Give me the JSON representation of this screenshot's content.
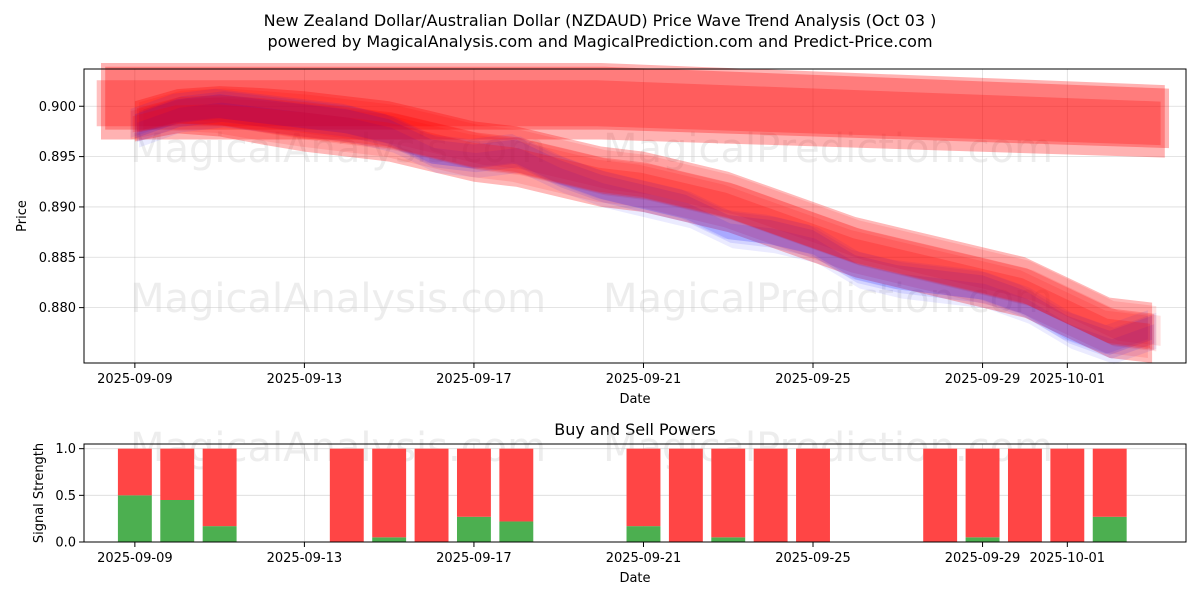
{
  "title_line1": "New Zealand Dollar/Australian Dollar (NZDAUD) Price Wave Trend Analysis (Oct 03 )",
  "title_line2": "powered by MagicalAnalysis.com and MagicalPrediction.com and Predict-Price.com",
  "watermarks": [
    "MagicalAnalysis.com",
    "MagicalPrediction.com"
  ],
  "colors": {
    "red": "#ff0000",
    "blue": "#0000ff",
    "buy": "#4caf50",
    "sell": "#ff4545"
  },
  "chart_data": [
    {
      "type": "area",
      "ylabel": "Price",
      "xlabel": "Date",
      "x_tick_labels": [
        "2025-09-09",
        "2025-09-13",
        "2025-09-17",
        "2025-09-21",
        "2025-09-25",
        "2025-09-29",
        "2025-10-01"
      ],
      "x_tick_days": [
        9,
        13,
        17,
        21,
        25,
        29,
        31
      ],
      "xlim_day": [
        7.8,
        33.8
      ],
      "ylim": [
        0.8745,
        0.9037
      ],
      "y_ticks": [
        0.88,
        0.885,
        0.89,
        0.895,
        0.9
      ],
      "y_tick_labels": [
        "0.880",
        "0.885",
        "0.890",
        "0.895",
        "0.900"
      ],
      "upper_band": {
        "x_day": [
          8.2,
          20,
          33.3
        ],
        "center": [
          0.9005,
          0.9005,
          0.8985
        ],
        "halfwidth": [
          0.0038,
          0.0038,
          0.0036
        ]
      },
      "red_wave": {
        "x_day": [
          9,
          10,
          11,
          12,
          13,
          14,
          15,
          16,
          17,
          18,
          19,
          20,
          21,
          22,
          23,
          24,
          25,
          26,
          27,
          28,
          29,
          30,
          31,
          32,
          33
        ],
        "center": [
          0.8985,
          0.8995,
          0.8995,
          0.899,
          0.8985,
          0.898,
          0.8975,
          0.8965,
          0.8955,
          0.895,
          0.894,
          0.893,
          0.8925,
          0.8915,
          0.8905,
          0.889,
          0.8875,
          0.886,
          0.885,
          0.884,
          0.883,
          0.882,
          0.88,
          0.878,
          0.8775
        ],
        "halfwidth": [
          0.002,
          0.0022,
          0.0025,
          0.0028,
          0.003,
          0.003,
          0.003,
          0.003,
          0.003,
          0.003,
          0.003,
          0.003,
          0.003,
          0.003,
          0.003,
          0.003,
          0.003,
          0.003,
          0.003,
          0.003,
          0.003,
          0.003,
          0.003,
          0.003,
          0.003
        ]
      },
      "blue_wave": {
        "x_day": [
          9,
          10,
          11,
          12,
          13,
          14,
          15,
          16,
          17,
          18,
          19,
          20,
          21,
          22,
          23,
          24,
          25,
          26,
          27,
          28,
          29,
          30,
          31,
          32,
          33
        ],
        "center": [
          0.898,
          0.8995,
          0.9,
          0.8995,
          0.899,
          0.8985,
          0.8975,
          0.8955,
          0.895,
          0.8955,
          0.8935,
          0.892,
          0.891,
          0.89,
          0.888,
          0.8875,
          0.8865,
          0.884,
          0.883,
          0.8825,
          0.882,
          0.8805,
          0.878,
          0.8765,
          0.878
        ],
        "halfwidth": [
          0.0012,
          0.0012,
          0.0012,
          0.0012,
          0.0012,
          0.0012,
          0.0012,
          0.0012,
          0.0012,
          0.0012,
          0.0012,
          0.0012,
          0.0012,
          0.0012,
          0.0012,
          0.0012,
          0.0012,
          0.0012,
          0.0012,
          0.0012,
          0.0012,
          0.0012,
          0.0012,
          0.0012,
          0.0012
        ]
      }
    },
    {
      "type": "bar",
      "title": "Buy and Sell Powers",
      "ylabel": "Signal Strength",
      "xlabel": "Date",
      "x_tick_labels": [
        "2025-09-09",
        "2025-09-13",
        "2025-09-17",
        "2025-09-21",
        "2025-09-25",
        "2025-09-29",
        "2025-10-01"
      ],
      "x_tick_days": [
        9,
        13,
        17,
        21,
        25,
        29,
        31
      ],
      "xlim_day": [
        7.8,
        33.8
      ],
      "ylim": [
        0,
        1.05
      ],
      "y_ticks": [
        0,
        0.5,
        1
      ],
      "y_tick_labels": [
        "0.0",
        "0.5",
        "1.0"
      ],
      "days": [
        9,
        10,
        11,
        14,
        15,
        16,
        17,
        18,
        21,
        22,
        23,
        24,
        25,
        28,
        29,
        30,
        31,
        32
      ],
      "buy": [
        0.5,
        0.45,
        0.17,
        0.0,
        0.05,
        0.0,
        0.27,
        0.22,
        0.17,
        0.0,
        0.05,
        0.0,
        0.0,
        0.0,
        0.05,
        0.0,
        0.0,
        0.27
      ],
      "sell": [
        0.5,
        0.55,
        0.83,
        1.0,
        0.95,
        1.0,
        0.73,
        0.78,
        0.83,
        1.0,
        0.95,
        1.0,
        1.0,
        1.0,
        0.95,
        1.0,
        1.0,
        0.73
      ]
    }
  ]
}
